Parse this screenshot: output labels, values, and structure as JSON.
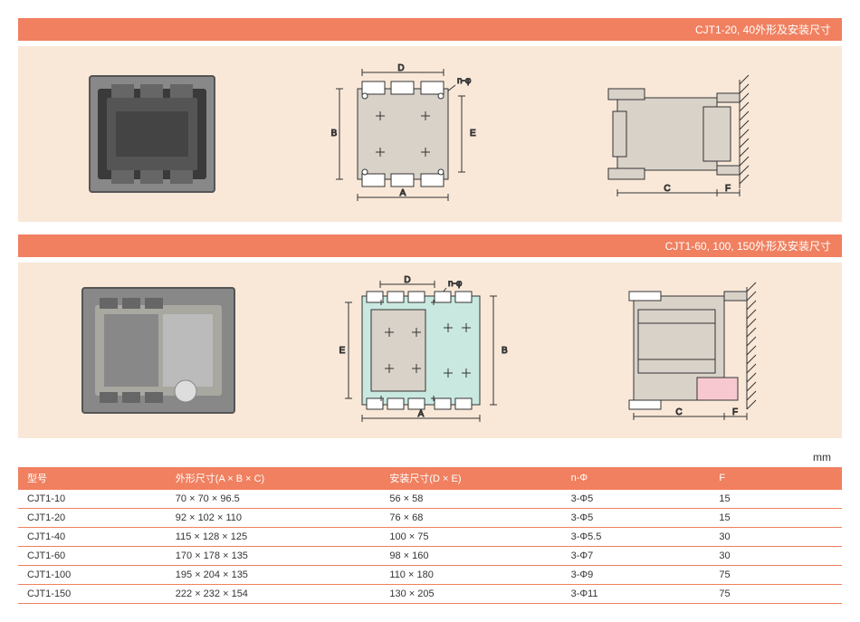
{
  "colors": {
    "accent": "#f08060",
    "panel_bg": "#f9e8d8",
    "text": "#333333",
    "drawing_line": "#333333",
    "drawing_fill": "#d9d2c8",
    "drawing_fill2": "#c9e8e0"
  },
  "sections": [
    {
      "title": "CJT1-20, 40外形及安装尺寸",
      "drawings": {
        "front": {
          "labels": {
            "A": "A",
            "B": "B",
            "D": "D",
            "E": "E",
            "nphi": "n-φ"
          }
        },
        "side": {
          "labels": {
            "C": "C",
            "F": "F"
          }
        }
      }
    },
    {
      "title": "CJT1-60, 100, 150外形及安装尺寸",
      "drawings": {
        "front": {
          "labels": {
            "A": "A",
            "B": "B",
            "D": "D",
            "E": "E",
            "nphi": "n-φ"
          }
        },
        "side": {
          "labels": {
            "C": "C",
            "F": "F"
          }
        }
      }
    }
  ],
  "unit": "mm",
  "table": {
    "columns": [
      "型号",
      "外形尺寸(A × B × C)",
      "安装尺寸(D × E)",
      "n-Φ",
      "F"
    ],
    "column_widths": [
      "18%",
      "26%",
      "22%",
      "18%",
      "16%"
    ],
    "rows": [
      [
        "CJT1-10",
        "70 × 70 × 96.5",
        "56 × 58",
        "3-Φ5",
        "15"
      ],
      [
        "CJT1-20",
        "92 × 102 × 110",
        "76 × 68",
        "3-Φ5",
        "15"
      ],
      [
        "CJT1-40",
        "115 × 128 × 125",
        "100 × 75",
        "3-Φ5.5",
        "30"
      ],
      [
        "CJT1-60",
        "170 × 178 × 135",
        "98 × 160",
        "3-Φ7",
        "30"
      ],
      [
        "CJT1-100",
        "195 × 204 × 135",
        "110 × 180",
        "3-Φ9",
        "75"
      ],
      [
        "CJT1-150",
        "222 × 232 × 154",
        "130 × 205",
        "3-Φ11",
        "75"
      ]
    ]
  }
}
